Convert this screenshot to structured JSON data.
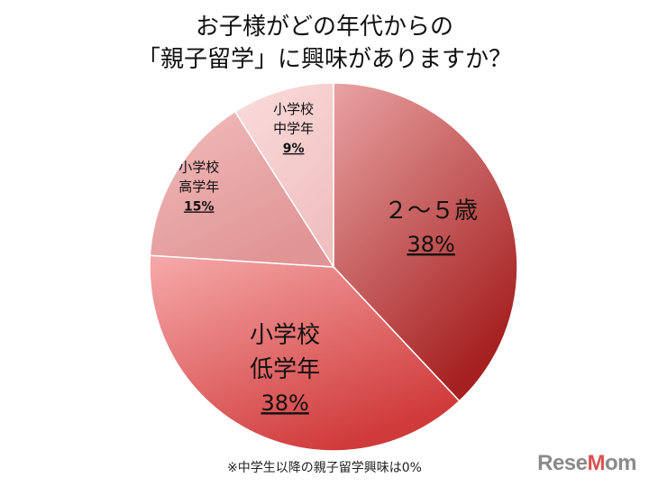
{
  "title_lines": [
    "お子様がどの年代からの",
    "「親子留学」に興味がありますか？"
  ],
  "chart_data": {
    "type": "pie",
    "title": "お子様がどの年代からの「親子留学」に興味がありますか？",
    "slices": [
      {
        "label": [
          "２～５歳"
        ],
        "value": 38,
        "display": "38%",
        "color_light": "#e8a3a3",
        "color_dark": "#a62020"
      },
      {
        "label": [
          "小学校",
          "低学年"
        ],
        "value": 38,
        "display": "38%",
        "color_light": "#f6aaaa",
        "color_dark": "#d03a3a"
      },
      {
        "label": [
          "小学校",
          "高学年"
        ],
        "value": 15,
        "display": "15%",
        "color_light": "#f2bcbc",
        "color_dark": "#e09494"
      },
      {
        "label": [
          "小学校",
          "中学年"
        ],
        "value": 9,
        "display": "9%",
        "color_light": "#fbdcdc",
        "color_dark": "#f0c0c0"
      }
    ],
    "legend": "none",
    "grid": false
  },
  "footnote": "※中学生以降の親子留学興味は0%",
  "logo": {
    "pre": "Rese",
    "accent": "M",
    "post": "om"
  }
}
